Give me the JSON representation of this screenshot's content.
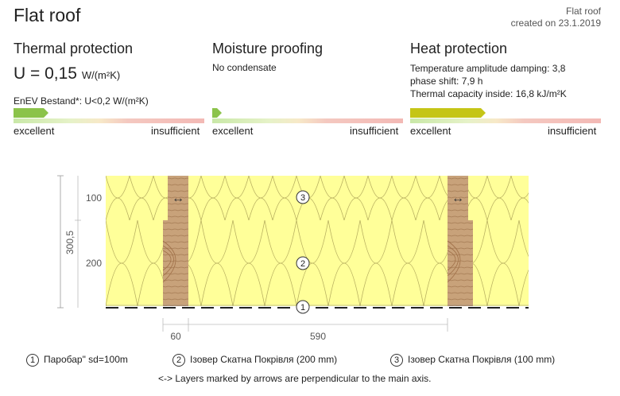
{
  "header": {
    "title": "Flat roof",
    "type_label": "Flat roof",
    "created": "created on 23.1.2019"
  },
  "thermal": {
    "heading": "Thermal protection",
    "u_value": "U = 0,15",
    "u_unit": "W/(m²K)",
    "enev": "EnEV Bestand*: U<0,2 W/(m²K)",
    "scale_left": "excellent",
    "scale_right": "insufficient",
    "rating": 0.16,
    "color": "#8bc34a"
  },
  "moisture": {
    "heading": "Moisture proofing",
    "note": "No condensate",
    "scale_left": "excellent",
    "scale_right": "insufficient",
    "rating": 0.02,
    "color": "#8bc34a"
  },
  "heat": {
    "heading": "Heat protection",
    "lines": [
      "Temperature amplitude damping: 3,8",
      "phase shift: 7,9 h",
      "Thermal capacity inside: 16,8 kJ/m²K"
    ],
    "scale_left": "excellent",
    "scale_right": "insufficient",
    "rating": 0.37,
    "color": "#c5c516"
  },
  "drawing": {
    "total_thickness": "300,5",
    "layer_100": "100",
    "layer_200": "200",
    "dim_60": "60",
    "dim_590": "590",
    "arrow_glyph": "↔",
    "callouts": [
      "1",
      "2",
      "3"
    ]
  },
  "legend": {
    "items": [
      {
        "num": "1",
        "label": "Паробар\" sd=100m"
      },
      {
        "num": "2",
        "label": "Ізовер Скатна Покрівля (200 mm)"
      },
      {
        "num": "3",
        "label": "Ізовер Скатна Покрівля (100 mm)"
      }
    ],
    "note": "<-> Layers marked by arrows are perpendicular to the main axis."
  }
}
